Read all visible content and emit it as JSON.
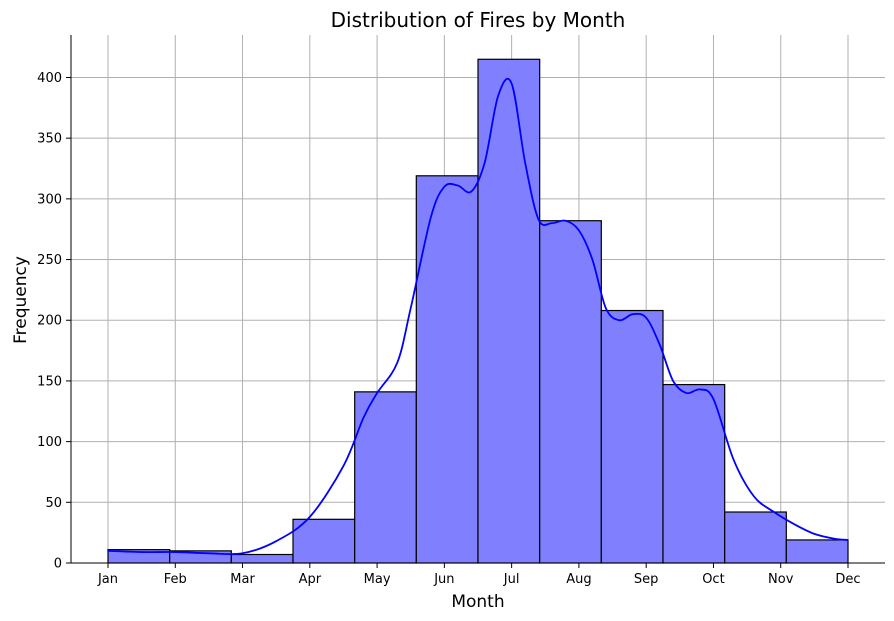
{
  "chart_data": {
    "type": "bar",
    "title": "Distribution of Fires by Month",
    "xlabel": "Month",
    "ylabel": "Frequency",
    "categories": [
      "Jan",
      "Feb",
      "Mar",
      "Apr",
      "May",
      "Jun",
      "Jul",
      "Aug",
      "Sep",
      "Oct",
      "Nov",
      "Dec"
    ],
    "bars": [
      {
        "from": 1.0,
        "to": 1.917,
        "value": 11
      },
      {
        "from": 1.917,
        "to": 2.833,
        "value": 10
      },
      {
        "from": 2.833,
        "to": 3.75,
        "value": 7
      },
      {
        "from": 3.75,
        "to": 4.667,
        "value": 36
      },
      {
        "from": 4.667,
        "to": 5.583,
        "value": 141
      },
      {
        "from": 5.583,
        "to": 6.5,
        "value": 319
      },
      {
        "from": 6.5,
        "to": 7.417,
        "value": 415
      },
      {
        "from": 7.417,
        "to": 8.333,
        "value": 282
      },
      {
        "from": 8.333,
        "to": 9.25,
        "value": 208
      },
      {
        "from": 9.25,
        "to": 10.167,
        "value": 147
      },
      {
        "from": 10.167,
        "to": 11.083,
        "value": 42
      },
      {
        "from": 11.083,
        "to": 12.0,
        "value": 19
      }
    ],
    "kde_curve": {
      "x": [
        1.0,
        1.5,
        2.0,
        2.5,
        3.0,
        3.5,
        4.0,
        4.5,
        4.8,
        5.0,
        5.3,
        5.5,
        5.8,
        6.0,
        6.2,
        6.4,
        6.6,
        6.8,
        7.0,
        7.2,
        7.4,
        7.6,
        7.8,
        8.0,
        8.2,
        8.4,
        8.6,
        8.8,
        9.0,
        9.2,
        9.4,
        9.6,
        9.8,
        10.0,
        10.3,
        10.6,
        10.9,
        11.2,
        11.5,
        11.8,
        12.0
      ],
      "y": [
        10,
        9,
        9,
        8,
        8,
        18,
        38,
        80,
        120,
        140,
        165,
        210,
        285,
        310,
        311,
        306,
        330,
        385,
        395,
        330,
        283,
        280,
        282,
        274,
        250,
        210,
        200,
        205,
        202,
        180,
        150,
        140,
        143,
        135,
        85,
        55,
        42,
        32,
        24,
        20,
        19
      ]
    },
    "xlim": [
      0.45,
      12.55
    ],
    "ylim": [
      0,
      435
    ],
    "yticks": [
      0,
      50,
      100,
      150,
      200,
      250,
      300,
      350,
      400
    ],
    "bar_color": "#8080ff",
    "curve_color": "#0000ff",
    "grid": true
  }
}
